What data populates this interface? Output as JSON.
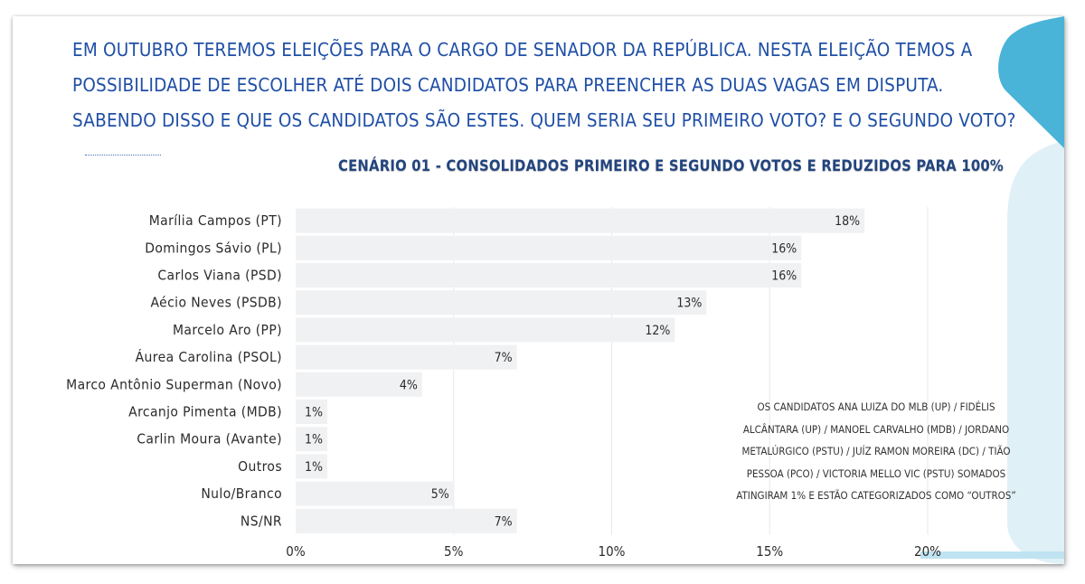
{
  "question": {
    "lines": [
      "EM OUTUBRO TEREMOS ELEIÇÕES PARA O CARGO DE SENADOR DA REPÚBLICA. NESTA ELEIÇÃO TEMOS A",
      "POSSIBILIDADE DE ESCOLHER ATÉ DOIS CANDIDATOS PARA PREENCHER AS DUAS VAGAS EM DISPUTA.",
      "SABENDO DISSO E QUE OS CANDIDATOS SÃO ESTES. QUEM SERIA SEU PRIMEIRO VOTO? E O SEGUNDO VOTO?"
    ]
  },
  "note": "OS CANDIDATOS ANA LUIZA DO MLB (UP) / FIDÉLIS ALCÂNTARA (UP) / MANOEL CARVALHO (MDB) / JORDANO METALÚRGICO (PSTU) / JUÍZ RAMON MOREIRA (DC) / TIÃO PESSOA (PCO) / VICTORIA MELLO VIC (PSTU) SOMADOS ATINGIRAM 1% E ESTÃO CATEGORIZADOS COMO “OUTROS”",
  "colors": {
    "question_text": "#1f4fa6",
    "title": "#23457f",
    "bar": "#eff1f2",
    "accent_dark": "#4ab3d8",
    "accent_light": "#d8eef6"
  },
  "chart_data": {
    "type": "bar",
    "orientation": "horizontal",
    "title": "CENÁRIO 01 - CONSOLIDADOS PRIMEIRO E SEGUNDO VOTOS E REDUZIDOS PARA 100%",
    "categories": [
      "Marília Campos (PT)",
      "Domingos Sávio (PL)",
      "Carlos Viana (PSD)",
      "Aécio Neves (PSDB)",
      "Marcelo Aro (PP)",
      "Áurea Carolina (PSOL)",
      "Marco Antônio Superman (Novo)",
      "Arcanjo Pimenta (MDB)",
      "Carlin Moura (Avante)",
      "Outros",
      "Nulo/Branco",
      "NS/NR"
    ],
    "values": [
      18,
      16,
      16,
      13,
      12,
      7,
      4,
      1,
      1,
      1,
      5,
      7
    ],
    "value_labels": [
      "18%",
      "16%",
      "16%",
      "13%",
      "12%",
      "7%",
      "4%",
      "1%",
      "1%",
      "1%",
      "5%",
      "7%"
    ],
    "xlim": [
      0,
      20
    ],
    "xticks": [
      0,
      5,
      10,
      15,
      20
    ],
    "xtick_labels": [
      "0%",
      "5%",
      "10%",
      "15%",
      "20%"
    ],
    "grid": true,
    "legend": "none"
  }
}
